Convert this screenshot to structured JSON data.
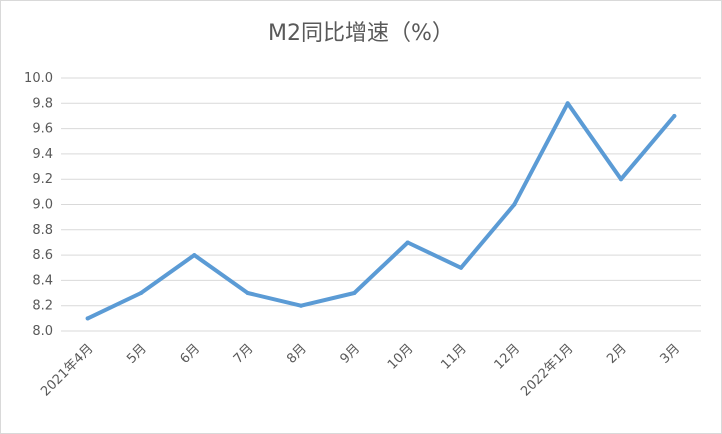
{
  "chart_data": {
    "type": "line",
    "title": "M2同比增速（%）",
    "xlabel": "",
    "ylabel": "",
    "categories": [
      "2021年4月",
      "5月",
      "6月",
      "7月",
      "8月",
      "9月",
      "10月",
      "11月",
      "12月",
      "2022年1月",
      "2月",
      "3月"
    ],
    "series": [
      {
        "values": [
          8.1,
          8.3,
          8.6,
          8.3,
          8.2,
          8.3,
          8.7,
          8.5,
          9.0,
          9.8,
          9.2,
          9.7
        ]
      }
    ],
    "ylim": [
      8.0,
      10.0
    ],
    "yticks": [
      "8.0",
      "8.2",
      "8.4",
      "8.6",
      "8.8",
      "9.0",
      "9.2",
      "9.4",
      "9.6",
      "9.8",
      "10.0"
    ],
    "grid": "horizontal",
    "legend": "none",
    "line_color": "#5b9bd5"
  }
}
